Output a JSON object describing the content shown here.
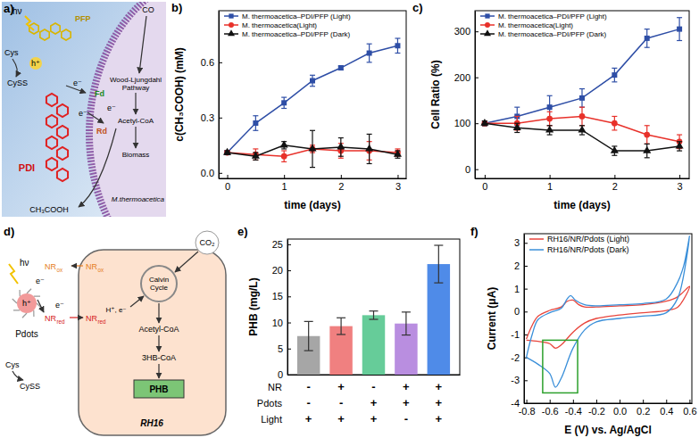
{
  "chart_data": [
    {
      "type": "line",
      "panel": "b)",
      "x_label": "time (days)",
      "y_label": "c(CH₃COOH) (mM)",
      "x": [
        0,
        0.5,
        1,
        1.5,
        2,
        2.5,
        3
      ],
      "xlim": [
        -0.15,
        3.15
      ],
      "xticks": [
        0,
        1,
        2,
        3
      ],
      "ylim": [
        -0.03,
        0.88
      ],
      "yticks": [
        {
          "value": 0,
          "label": "0.0"
        },
        0.3,
        0.6
      ],
      "legend": "upper left",
      "series": [
        {
          "name": "M. thermoacetica–PDI/PFP (Light)",
          "color": "#2e4ea6",
          "marker": "square",
          "values": [
            0.11,
            0.27,
            0.38,
            0.5,
            0.57,
            0.65,
            0.69
          ],
          "errors": [
            0.01,
            0.04,
            0.03,
            0.03,
            0.01,
            0.05,
            0.04
          ]
        },
        {
          "name": "M. thermoacetica(Light)",
          "color": "#e8312a",
          "marker": "circle",
          "values": [
            0.11,
            0.1,
            0.09,
            0.13,
            0.12,
            0.12,
            0.11
          ],
          "errors": [
            0.01,
            0.03,
            0.03,
            0.02,
            0.04,
            0.05,
            0.02
          ]
        },
        {
          "name": "M. thermoacetica–PDI/PFP (Dark)",
          "color": "#111111",
          "marker": "triangle",
          "values": [
            0.11,
            0.09,
            0.15,
            0.13,
            0.14,
            0.13,
            0.1
          ],
          "errors": [
            0.01,
            0.02,
            0.02,
            0.1,
            0.05,
            0.08,
            0.02
          ]
        }
      ]
    },
    {
      "type": "line",
      "panel": "c)",
      "x_label": "time (days)",
      "y_label": "Cell Ratio (%)",
      "x": [
        0,
        0.5,
        1,
        1.5,
        2,
        2.5,
        3
      ],
      "xlim": [
        -0.15,
        3.15
      ],
      "xticks": [
        0,
        1,
        2,
        3
      ],
      "ylim": [
        -20,
        345
      ],
      "yticks": [
        0,
        100,
        200,
        300
      ],
      "legend": "upper left",
      "series": [
        {
          "name": "M. thermoacetica–PDI/PFP (Light)",
          "color": "#2e4ea6",
          "marker": "square",
          "values": [
            100,
            115,
            135,
            155,
            205,
            285,
            305
          ],
          "errors": [
            5,
            20,
            25,
            20,
            15,
            20,
            25
          ]
        },
        {
          "name": "M. thermoacetica(Light)",
          "color": "#e8312a",
          "marker": "circle",
          "values": [
            100,
            100,
            110,
            115,
            100,
            75,
            60
          ],
          "errors": [
            5,
            15,
            15,
            20,
            15,
            20,
            15
          ]
        },
        {
          "name": "M. thermoacetica–PDI/PFP (Dark)",
          "color": "#111111",
          "marker": "triangle",
          "values": [
            100,
            90,
            85,
            85,
            40,
            40,
            50
          ],
          "errors": [
            5,
            10,
            10,
            10,
            10,
            15,
            10
          ]
        }
      ]
    },
    {
      "type": "bar",
      "panel": "e)",
      "y_label": "PHB (mg/L)",
      "categories": [
        null,
        null,
        null,
        null,
        null
      ],
      "values": [
        7.4,
        9.3,
        11.4,
        9.8,
        21.2
      ],
      "errors": [
        2.8,
        1.6,
        0.8,
        2.2,
        3.6
      ],
      "colors": [
        "#a6a6a6",
        "#f08080",
        "#66cc99",
        "#b98ee0",
        "#4f8be8"
      ],
      "ylim": [
        0,
        26
      ],
      "yticks": [
        0,
        5,
        10,
        15,
        20,
        25
      ],
      "tick_labels": "y",
      "conditions": [
        {
          "label": "NR",
          "values": [
            "-",
            "+",
            "-",
            "+",
            "+"
          ]
        },
        {
          "label": "Pdots",
          "values": [
            "-",
            "-",
            "+",
            "+",
            "+"
          ]
        },
        {
          "label": "Light",
          "values": [
            "+",
            "+",
            "+",
            "-",
            "+"
          ]
        }
      ]
    },
    {
      "type": "line",
      "panel": "f)",
      "x_label": "E (V) vs. Ag/AgCl",
      "y_label": "Current (μA)",
      "xlim": [
        -0.82,
        0.62
      ],
      "xticks": [
        -0.8,
        -0.6,
        -0.4,
        -0.2,
        {
          "value": 0,
          "label": "0.0"
        },
        0.2,
        0.4,
        0.6
      ],
      "ylim": [
        -4,
        3.4
      ],
      "yticks": [
        -4,
        -3,
        -2,
        -1,
        0,
        1,
        2,
        3
      ],
      "legend": "upper left",
      "series": [
        {
          "name": "RH16/NR/Pdots (Light)",
          "color": "#e8453c",
          "x": [
            -0.8,
            -0.75,
            -0.7,
            -0.6,
            -0.5,
            -0.45,
            -0.4,
            -0.35,
            -0.3,
            -0.2,
            0,
            0.2,
            0.4,
            0.5,
            0.6,
            0.5,
            0.4,
            0.2,
            0,
            -0.2,
            -0.3,
            -0.4,
            -0.5,
            -0.55,
            -0.6,
            -0.7,
            -0.8
          ],
          "values": [
            -1.2,
            -0.6,
            -0.2,
            0.05,
            0.2,
            0.45,
            0.5,
            0.3,
            0.2,
            0.2,
            0.25,
            0.3,
            0.45,
            0.65,
            1.1,
            0.2,
            0.05,
            -0.05,
            -0.15,
            -0.3,
            -0.5,
            -0.9,
            -1.45,
            -1.6,
            -1.4,
            -1.3,
            -1.25
          ]
        },
        {
          "name": "RH16/NR/Pdots (Dark)",
          "color": "#3a8fd9",
          "x": [
            -0.8,
            -0.75,
            -0.7,
            -0.6,
            -0.5,
            -0.45,
            -0.42,
            -0.38,
            -0.3,
            -0.2,
            0,
            0.2,
            0.4,
            0.5,
            0.55,
            0.6,
            0.5,
            0.4,
            0.2,
            0,
            -0.2,
            -0.3,
            -0.4,
            -0.5,
            -0.55,
            -0.6,
            -0.7,
            -0.8
          ],
          "values": [
            -2.0,
            -1.0,
            -0.35,
            -0.05,
            0.15,
            0.55,
            0.7,
            0.5,
            0.3,
            0.25,
            0.3,
            0.35,
            0.55,
            1.3,
            2.0,
            3.3,
            0.6,
            -0.05,
            -0.2,
            -0.3,
            -0.45,
            -0.8,
            -1.6,
            -2.9,
            -3.3,
            -2.7,
            -2.3,
            -2.0
          ]
        }
      ],
      "highlight": {
        "x": [
          -0.66,
          -0.36
        ],
        "y": [
          -3.55,
          -1.25
        ],
        "color": "#2ca02c"
      }
    }
  ],
  "diagrams": [
    {
      "panel": "a)",
      "labels": {
        "hv": "hν",
        "pfp": "PFP",
        "cys": "Cys",
        "h": "h⁺",
        "cyss": "CySS",
        "e1": "e⁻",
        "e2": "e⁻",
        "e3": "e⁻",
        "fd": "Fd",
        "rd": "Rd",
        "co": "CO",
        "pathway": "Wood-Ljungdahl Pathway",
        "acetyl": "Acetyl-CoA",
        "biomass": "Biomass",
        "acetate": "CH₃COOH",
        "pdi": "PDI",
        "cell": "M.thermoacetica"
      }
    },
    {
      "panel": "d)",
      "labels": {
        "hv": "hν",
        "cys": "Cys",
        "cyss": "CySS",
        "h": "h⁺",
        "e1": "e⁻",
        "e2": "e⁻",
        "pdots": "Pdots",
        "co2": "CO₂",
        "calvin": "Calvin Cycle",
        "he": "H⁺, e⁻",
        "acetyl": "Acetyl-CoA",
        "hb": "3HB-CoA",
        "phb": "PHB",
        "cell": "RH16",
        "nr_ox_out": {
          "text": "NR",
          "sub": "ox"
        },
        "nr_red_out": {
          "text": "NR",
          "sub": "red"
        },
        "nr_ox_in": {
          "text": "NR",
          "sub": "ox"
        },
        "nr_red_in": {
          "text": "NR",
          "sub": "red"
        }
      }
    }
  ]
}
